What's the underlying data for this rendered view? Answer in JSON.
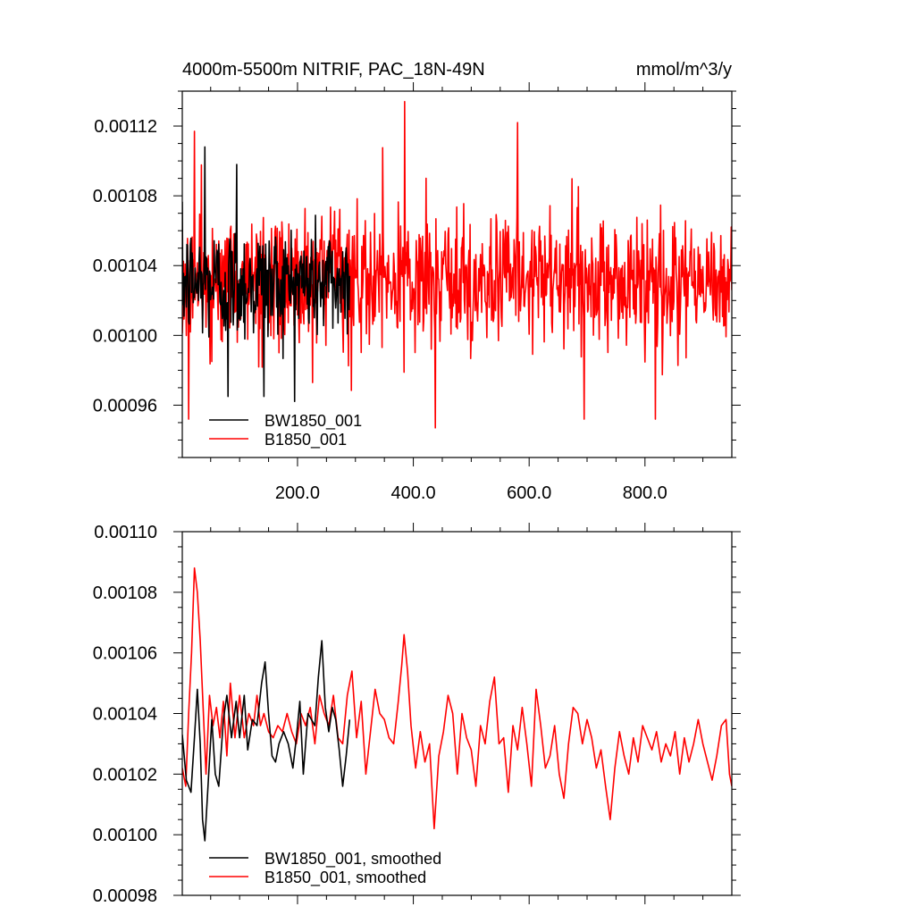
{
  "chart_data": [
    {
      "type": "line",
      "title": "4000m-5500m NITRIF, PAC_18N-49N",
      "units": "mmol/m^3/y",
      "xlim": [
        1,
        950
      ],
      "ylim": [
        0.00093,
        0.00114
      ],
      "yticks": [
        "0.00096",
        "0.00100",
        "0.00104",
        "0.00108",
        "0.00112"
      ],
      "ytick_values": [
        0.00096,
        0.001,
        0.00104,
        0.00108,
        0.00112
      ],
      "xticks": [
        "200.0",
        "400.0",
        "600.0",
        "800.0"
      ],
      "xtick_values": [
        200,
        400,
        600,
        800
      ],
      "legend_position": "bottom-left",
      "series": [
        {
          "name": "BW1850_001",
          "color": "#000000",
          "x_range": [
            1,
            290
          ],
          "mean": 0.00103,
          "amplitude": 2.8e-05,
          "extremes": [
            [
              40,
              0.001108
            ],
            [
              80,
              0.000965
            ],
            [
              142,
              0.000965
            ],
            [
              95,
              0.001098
            ]
          ]
        },
        {
          "name": "B1850_001",
          "color": "#ff0000",
          "x_range": [
            1,
            950
          ],
          "mean": 0.00103,
          "amplitude": 3.2e-05,
          "extremes": [
            [
              22,
              0.001117
            ],
            [
              12,
              0.000952
            ],
            [
              385,
              0.001134
            ],
            [
              438,
              0.000947
            ],
            [
              695,
              0.000952
            ],
            [
              818,
              0.000952
            ],
            [
              580,
              0.001122
            ]
          ]
        }
      ]
    },
    {
      "type": "line",
      "title": "",
      "xlim": [
        1,
        950
      ],
      "ylim": [
        0.00098,
        0.0011
      ],
      "yticks": [
        "0.00098",
        "0.00100",
        "0.00102",
        "0.00104",
        "0.00106",
        "0.00108",
        "0.00110"
      ],
      "ytick_values": [
        0.00098,
        0.001,
        0.00102,
        0.00104,
        0.00106,
        0.00108,
        0.0011
      ],
      "legend_position": "bottom-left",
      "series": [
        {
          "name": "BW1850_001, smoothed",
          "color": "#000000",
          "points": [
            [
              1,
              0.001033
            ],
            [
              8,
              0.001018
            ],
            [
              16,
              0.001014
            ],
            [
              22,
              0.001032
            ],
            [
              27,
              0.001048
            ],
            [
              32,
              0.00103
            ],
            [
              36,
              0.001005
            ],
            [
              40,
              0.000998
            ],
            [
              46,
              0.001018
            ],
            [
              52,
              0.001038
            ],
            [
              58,
              0.00102
            ],
            [
              64,
              0.001016
            ],
            [
              72,
              0.001038
            ],
            [
              78,
              0.001046
            ],
            [
              86,
              0.001032
            ],
            [
              94,
              0.001044
            ],
            [
              100,
              0.001032
            ],
            [
              108,
              0.001046
            ],
            [
              114,
              0.001028
            ],
            [
              122,
              0.001038
            ],
            [
              130,
              0.001036
            ],
            [
              138,
              0.00105
            ],
            [
              144,
              0.001057
            ],
            [
              150,
              0.00104
            ],
            [
              156,
              0.001026
            ],
            [
              162,
              0.001024
            ],
            [
              168,
              0.00103
            ],
            [
              176,
              0.001034
            ],
            [
              184,
              0.00103
            ],
            [
              192,
              0.001022
            ],
            [
              198,
              0.001032
            ],
            [
              204,
              0.001044
            ],
            [
              210,
              0.00102
            ],
            [
              218,
              0.00104
            ],
            [
              224,
              0.001038
            ],
            [
              230,
              0.001036
            ],
            [
              236,
              0.001052
            ],
            [
              242,
              0.001064
            ],
            [
              248,
              0.001042
            ],
            [
              254,
              0.001034
            ],
            [
              260,
              0.001042
            ],
            [
              266,
              0.001038
            ],
            [
              272,
              0.001028
            ],
            [
              278,
              0.001016
            ],
            [
              284,
              0.001026
            ],
            [
              290,
              0.001038
            ]
          ]
        },
        {
          "name": "B1850_001, smoothed",
          "color": "#ff0000",
          "points": [
            [
              1,
              0.001022
            ],
            [
              7,
              0.001016
            ],
            [
              12,
              0.00104
            ],
            [
              17,
              0.00106
            ],
            [
              22,
              0.001088
            ],
            [
              27,
              0.00108
            ],
            [
              32,
              0.001064
            ],
            [
              37,
              0.001042
            ],
            [
              42,
              0.00102
            ],
            [
              48,
              0.001046
            ],
            [
              54,
              0.001036
            ],
            [
              60,
              0.001042
            ],
            [
              66,
              0.001032
            ],
            [
              72,
              0.001044
            ],
            [
              78,
              0.001026
            ],
            [
              84,
              0.00105
            ],
            [
              92,
              0.001032
            ],
            [
              100,
              0.001046
            ],
            [
              108,
              0.001032
            ],
            [
              116,
              0.00104
            ],
            [
              124,
              0.001036
            ],
            [
              130,
              0.001046
            ],
            [
              136,
              0.001036
            ],
            [
              142,
              0.00104
            ],
            [
              150,
              0.001034
            ],
            [
              158,
              0.001032
            ],
            [
              166,
              0.001036
            ],
            [
              174,
              0.001034
            ],
            [
              182,
              0.00104
            ],
            [
              190,
              0.001034
            ],
            [
              198,
              0.00103
            ],
            [
              206,
              0.00104
            ],
            [
              214,
              0.001036
            ],
            [
              222,
              0.001042
            ],
            [
              230,
              0.00103
            ],
            [
              238,
              0.001046
            ],
            [
              246,
              0.00104
            ],
            [
              254,
              0.001036
            ],
            [
              262,
              0.001046
            ],
            [
              270,
              0.001032
            ],
            [
              278,
              0.00103
            ],
            [
              286,
              0.001046
            ],
            [
              294,
              0.001054
            ],
            [
              302,
              0.001032
            ],
            [
              310,
              0.001044
            ],
            [
              318,
              0.00102
            ],
            [
              326,
              0.001034
            ],
            [
              334,
              0.001048
            ],
            [
              342,
              0.00104
            ],
            [
              350,
              0.001038
            ],
            [
              358,
              0.001032
            ],
            [
              366,
              0.00103
            ],
            [
              374,
              0.001044
            ],
            [
              380,
              0.001056
            ],
            [
              384,
              0.001066
            ],
            [
              390,
              0.001054
            ],
            [
              396,
              0.001036
            ],
            [
              404,
              0.001022
            ],
            [
              412,
              0.001034
            ],
            [
              420,
              0.001024
            ],
            [
              428,
              0.00103
            ],
            [
              436,
              0.001002
            ],
            [
              444,
              0.001026
            ],
            [
              452,
              0.001034
            ],
            [
              460,
              0.001046
            ],
            [
              468,
              0.00104
            ],
            [
              476,
              0.00102
            ],
            [
              484,
              0.00104
            ],
            [
              492,
              0.001032
            ],
            [
              500,
              0.001028
            ],
            [
              508,
              0.001016
            ],
            [
              516,
              0.001036
            ],
            [
              524,
              0.00103
            ],
            [
              532,
              0.001044
            ],
            [
              540,
              0.001052
            ],
            [
              548,
              0.00103
            ],
            [
              556,
              0.001032
            ],
            [
              564,
              0.001014
            ],
            [
              572,
              0.001036
            ],
            [
              580,
              0.001028
            ],
            [
              588,
              0.001042
            ],
            [
              596,
              0.00103
            ],
            [
              604,
              0.001016
            ],
            [
              612,
              0.001048
            ],
            [
              620,
              0.001036
            ],
            [
              628,
              0.001022
            ],
            [
              636,
              0.001026
            ],
            [
              644,
              0.001036
            ],
            [
              652,
              0.00102
            ],
            [
              660,
              0.001012
            ],
            [
              668,
              0.00103
            ],
            [
              676,
              0.001042
            ],
            [
              684,
              0.00104
            ],
            [
              692,
              0.00103
            ],
            [
              700,
              0.001038
            ],
            [
              708,
              0.001032
            ],
            [
              716,
              0.001022
            ],
            [
              724,
              0.001028
            ],
            [
              732,
              0.001016
            ],
            [
              740,
              0.001005
            ],
            [
              748,
              0.001022
            ],
            [
              756,
              0.001034
            ],
            [
              764,
              0.001026
            ],
            [
              772,
              0.00102
            ],
            [
              780,
              0.001032
            ],
            [
              788,
              0.001024
            ],
            [
              796,
              0.001036
            ],
            [
              804,
              0.001032
            ],
            [
              812,
              0.001028
            ],
            [
              820,
              0.001034
            ],
            [
              828,
              0.001024
            ],
            [
              836,
              0.00103
            ],
            [
              844,
              0.001026
            ],
            [
              852,
              0.001034
            ],
            [
              860,
              0.00102
            ],
            [
              868,
              0.001032
            ],
            [
              876,
              0.001024
            ],
            [
              884,
              0.00103
            ],
            [
              892,
              0.001038
            ],
            [
              900,
              0.00103
            ],
            [
              908,
              0.001024
            ],
            [
              916,
              0.001018
            ],
            [
              924,
              0.001026
            ],
            [
              932,
              0.001036
            ],
            [
              940,
              0.001038
            ],
            [
              946,
              0.00102
            ],
            [
              950,
              0.001016
            ]
          ]
        }
      ]
    }
  ]
}
